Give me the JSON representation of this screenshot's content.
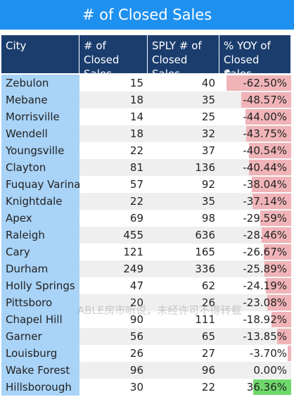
{
  "title": "# of Closed Sales",
  "table": {
    "headers": [
      "City",
      "# of Closed Sales",
      "SPLY # of Closed Sales",
      "% YOY of Closed Sales"
    ],
    "rows": [
      {
        "city": "Zebulon",
        "closed": 15,
        "sply": 40,
        "yoy": -62.5,
        "yoy_label": "-62.50%"
      },
      {
        "city": "Mebane",
        "closed": 18,
        "sply": 35,
        "yoy": -48.57,
        "yoy_label": "-48.57%"
      },
      {
        "city": "Morrisville",
        "closed": 14,
        "sply": 25,
        "yoy": -44,
        "yoy_label": "-44.00%"
      },
      {
        "city": "Wendell",
        "closed": 18,
        "sply": 32,
        "yoy": -43.75,
        "yoy_label": "-43.75%"
      },
      {
        "city": "Youngsville",
        "closed": 22,
        "sply": 37,
        "yoy": -40.54,
        "yoy_label": "-40.54%"
      },
      {
        "city": "Clayton",
        "closed": 81,
        "sply": 136,
        "yoy": -40.44,
        "yoy_label": "-40.44%"
      },
      {
        "city": "Fuquay Varina",
        "closed": 57,
        "sply": 92,
        "yoy": -38.04,
        "yoy_label": "-38.04%"
      },
      {
        "city": "Knightdale",
        "closed": 22,
        "sply": 35,
        "yoy": -37.14,
        "yoy_label": "-37.14%"
      },
      {
        "city": "Apex",
        "closed": 69,
        "sply": 98,
        "yoy": -29.59,
        "yoy_label": "-29.59%"
      },
      {
        "city": "Raleigh",
        "closed": 455,
        "sply": 636,
        "yoy": -28.46,
        "yoy_label": "-28.46%"
      },
      {
        "city": "Cary",
        "closed": 121,
        "sply": 165,
        "yoy": -26.67,
        "yoy_label": "-26.67%"
      },
      {
        "city": "Durham",
        "closed": 249,
        "sply": 336,
        "yoy": -25.89,
        "yoy_label": "-25.89%"
      },
      {
        "city": "Holly Springs",
        "closed": 47,
        "sply": 62,
        "yoy": -24.19,
        "yoy_label": "-24.19%"
      },
      {
        "city": "Pittsboro",
        "closed": 20,
        "sply": 26,
        "yoy": -23.08,
        "yoy_label": "-23.08%"
      },
      {
        "city": "Chapel Hill",
        "closed": 90,
        "sply": 111,
        "yoy": -18.92,
        "yoy_label": "-18.92%"
      },
      {
        "city": "Garner",
        "closed": 56,
        "sply": 65,
        "yoy": -13.85,
        "yoy_label": "-13.85%"
      },
      {
        "city": "Louisburg",
        "closed": 26,
        "sply": 27,
        "yoy": -3.7,
        "yoy_label": "-3.70%"
      },
      {
        "city": "Wake Forest",
        "closed": 96,
        "sply": 96,
        "yoy": 0,
        "yoy_label": "0.00%"
      },
      {
        "city": "Hillsborough",
        "closed": 30,
        "sply": 22,
        "yoy": 36.36,
        "yoy_label": "36.36%"
      }
    ]
  },
  "watermark": "ABLE房市听说，未经许可不得转载"
}
